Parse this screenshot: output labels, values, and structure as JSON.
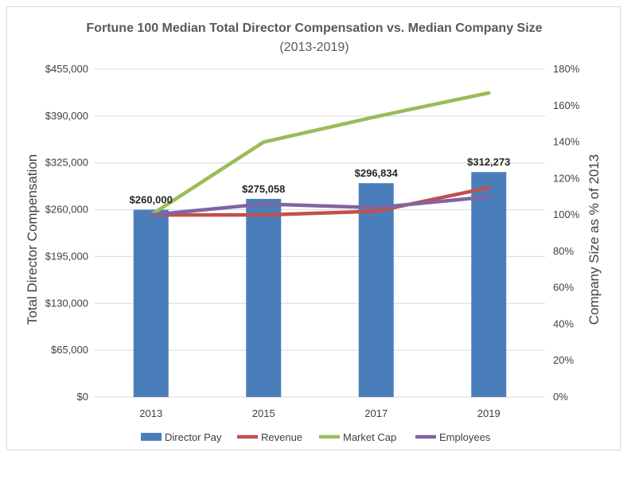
{
  "chart_data": {
    "type": "bar",
    "title": "Fortune 100 Median Total Director Compensation vs. Median Company Size",
    "subtitle": "(2013-2019)",
    "categories": [
      "2013",
      "2015",
      "2017",
      "2019"
    ],
    "ylabel": "Total Director Compensation",
    "y2label": "Company Size as % of 2013",
    "ylim": [
      0,
      455000
    ],
    "yticks": [
      0,
      65000,
      130000,
      195000,
      260000,
      325000,
      390000,
      455000
    ],
    "ytick_labels": [
      "$0",
      "$65,000",
      "$130,000",
      "$195,000",
      "$260,000",
      "$325,000",
      "$390,000",
      "$455,000"
    ],
    "y2lim": [
      0,
      180
    ],
    "y2ticks": [
      0,
      20,
      40,
      60,
      80,
      100,
      120,
      140,
      160,
      180
    ],
    "y2tick_labels": [
      "0%",
      "20%",
      "40%",
      "60%",
      "80%",
      "100%",
      "120%",
      "140%",
      "160%",
      "180%"
    ],
    "grid": "horizontal",
    "legend": "bottom",
    "bar_series": {
      "name": "Director Pay",
      "color": "#4a7ebb",
      "values": [
        260000,
        275058,
        296834,
        312273
      ],
      "labels": [
        "$260,000",
        "$275,058",
        "$296,834",
        "$312,273"
      ]
    },
    "line_series": [
      {
        "name": "Revenue",
        "color": "#c0504d",
        "values": [
          100,
          100,
          102,
          115
        ]
      },
      {
        "name": "Market Cap",
        "color": "#9bbb59",
        "values": [
          100,
          140,
          154,
          167
        ]
      },
      {
        "name": "Employees",
        "color": "#8064a2",
        "values": [
          100,
          106,
          104,
          110
        ]
      }
    ]
  }
}
